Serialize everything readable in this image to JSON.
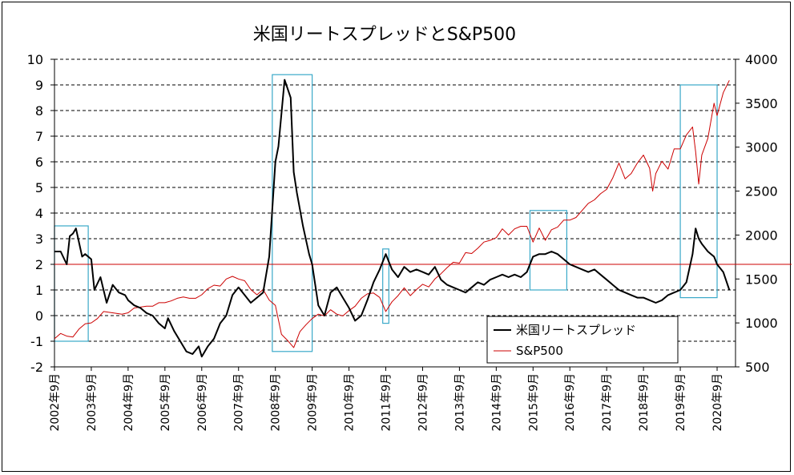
{
  "chart_data": {
    "type": "line",
    "title": "米国リートスプレッドとS&P500",
    "xlabel": "",
    "ylabel": "",
    "y_left": {
      "ylim": [
        -2,
        10
      ],
      "ticks": [
        10,
        9,
        8,
        7,
        6,
        5,
        4,
        3,
        2,
        1,
        0,
        -1,
        -2
      ]
    },
    "y_right": {
      "ylim": [
        500,
        4000
      ],
      "ticks": [
        4000,
        3500,
        3000,
        2500,
        2000,
        1500,
        1000,
        500
      ]
    },
    "x_ticks": [
      "2002年9月",
      "2003年9月",
      "2004年9月",
      "2005年9月",
      "2006年9月",
      "2007年9月",
      "2008年9月",
      "2009年9月",
      "2010年9月",
      "2011年9月",
      "2012年9月",
      "2013年9月",
      "2014年9月",
      "2015年9月",
      "2016年9月",
      "2017年9月",
      "2018年9月",
      "2019年9月",
      "2020年9月"
    ],
    "grid": "horizontal dashed",
    "legend_position": "bottom-right",
    "reference_line": {
      "axis": "left",
      "value": 2,
      "color": "#cc0000"
    },
    "colors": {
      "spread": "#000000",
      "sp500": "#cc0000",
      "highlight": "#3aa9c9"
    },
    "series": [
      {
        "name": "米国リートスプレッド",
        "axis": "left",
        "x": [
          "2002-09",
          "2002-11",
          "2003-01",
          "2003-02",
          "2003-03",
          "2003-04",
          "2003-06",
          "2003-07",
          "2003-09",
          "2003-10",
          "2003-12",
          "2004-02",
          "2004-04",
          "2004-06",
          "2004-08",
          "2004-09",
          "2004-11",
          "2005-01",
          "2005-03",
          "2005-05",
          "2005-07",
          "2005-09",
          "2005-10",
          "2005-12",
          "2006-02",
          "2006-04",
          "2006-06",
          "2006-08",
          "2006-09",
          "2006-11",
          "2007-01",
          "2007-03",
          "2007-05",
          "2007-07",
          "2007-09",
          "2007-11",
          "2008-01",
          "2008-03",
          "2008-05",
          "2008-07",
          "2008-09",
          "2008-10",
          "2008-12",
          "2009-02",
          "2009-03",
          "2009-04",
          "2009-06",
          "2009-08",
          "2009-09",
          "2009-11",
          "2010-01",
          "2010-03",
          "2010-05",
          "2010-07",
          "2010-09",
          "2010-11",
          "2011-01",
          "2011-03",
          "2011-05",
          "2011-07",
          "2011-09",
          "2011-11",
          "2012-01",
          "2012-03",
          "2012-05",
          "2012-07",
          "2012-09",
          "2012-11",
          "2013-01",
          "2013-03",
          "2013-05",
          "2013-07",
          "2013-09",
          "2013-11",
          "2014-01",
          "2014-03",
          "2014-05",
          "2014-07",
          "2014-09",
          "2014-11",
          "2015-01",
          "2015-03",
          "2015-05",
          "2015-07",
          "2015-09",
          "2015-11",
          "2016-01",
          "2016-03",
          "2016-05",
          "2016-07",
          "2016-09",
          "2016-11",
          "2017-01",
          "2017-03",
          "2017-05",
          "2017-07",
          "2017-09",
          "2017-11",
          "2018-01",
          "2018-03",
          "2018-05",
          "2018-07",
          "2018-09",
          "2018-11",
          "2019-01",
          "2019-03",
          "2019-05",
          "2019-07",
          "2019-09",
          "2019-11",
          "2020-01",
          "2020-02",
          "2020-03",
          "2020-04",
          "2020-06",
          "2020-08",
          "2020-09",
          "2020-11",
          "2021-01"
        ],
        "values": [
          2.5,
          2.5,
          2.0,
          3.1,
          3.2,
          3.4,
          2.3,
          2.4,
          2.2,
          1.0,
          1.5,
          0.5,
          1.2,
          0.9,
          0.8,
          0.6,
          0.4,
          0.3,
          0.1,
          0.0,
          -0.3,
          -0.5,
          -0.1,
          -0.6,
          -1.0,
          -1.4,
          -1.5,
          -1.2,
          -1.6,
          -1.2,
          -0.9,
          -0.3,
          0.0,
          0.8,
          1.1,
          0.8,
          0.5,
          0.7,
          0.9,
          2.3,
          6.0,
          6.6,
          9.2,
          8.5,
          5.6,
          4.8,
          3.5,
          2.4,
          2.0,
          0.4,
          0.0,
          0.9,
          1.1,
          0.7,
          0.3,
          -0.2,
          0.0,
          0.6,
          1.3,
          1.8,
          2.4,
          1.8,
          1.5,
          1.9,
          1.7,
          1.8,
          1.7,
          1.6,
          1.9,
          1.4,
          1.2,
          1.1,
          1.0,
          0.9,
          1.1,
          1.3,
          1.2,
          1.4,
          1.5,
          1.6,
          1.5,
          1.6,
          1.5,
          1.7,
          2.3,
          2.4,
          2.4,
          2.5,
          2.4,
          2.2,
          2.0,
          1.9,
          1.8,
          1.7,
          1.8,
          1.6,
          1.4,
          1.2,
          1.0,
          0.9,
          0.8,
          0.7,
          0.7,
          0.6,
          0.5,
          0.6,
          0.8,
          0.9,
          1.0,
          1.3,
          2.4,
          3.4,
          3.0,
          2.8,
          2.5,
          2.3,
          2.0,
          1.7,
          1.0
        ]
      },
      {
        "name": "S&P500",
        "axis": "right",
        "x": [
          "2002-09",
          "2002-11",
          "2003-01",
          "2003-03",
          "2003-05",
          "2003-07",
          "2003-09",
          "2003-11",
          "2004-01",
          "2004-03",
          "2004-05",
          "2004-07",
          "2004-09",
          "2004-11",
          "2005-01",
          "2005-03",
          "2005-05",
          "2005-07",
          "2005-09",
          "2005-11",
          "2006-01",
          "2006-03",
          "2006-05",
          "2006-07",
          "2006-09",
          "2006-11",
          "2007-01",
          "2007-03",
          "2007-05",
          "2007-07",
          "2007-09",
          "2007-11",
          "2008-01",
          "2008-03",
          "2008-05",
          "2008-07",
          "2008-09",
          "2008-11",
          "2009-01",
          "2009-03",
          "2009-05",
          "2009-07",
          "2009-09",
          "2009-11",
          "2010-01",
          "2010-03",
          "2010-05",
          "2010-07",
          "2010-09",
          "2010-11",
          "2011-01",
          "2011-03",
          "2011-05",
          "2011-07",
          "2011-09",
          "2011-11",
          "2012-01",
          "2012-03",
          "2012-05",
          "2012-07",
          "2012-09",
          "2012-11",
          "2013-01",
          "2013-03",
          "2013-05",
          "2013-07",
          "2013-09",
          "2013-11",
          "2014-01",
          "2014-03",
          "2014-05",
          "2014-07",
          "2014-09",
          "2014-11",
          "2015-01",
          "2015-03",
          "2015-05",
          "2015-07",
          "2015-09",
          "2015-11",
          "2016-01",
          "2016-03",
          "2016-05",
          "2016-07",
          "2016-09",
          "2016-11",
          "2017-01",
          "2017-03",
          "2017-05",
          "2017-07",
          "2017-09",
          "2017-11",
          "2018-01",
          "2018-03",
          "2018-05",
          "2018-07",
          "2018-09",
          "2018-11",
          "2018-12",
          "2019-01",
          "2019-03",
          "2019-05",
          "2019-07",
          "2019-09",
          "2019-11",
          "2020-01",
          "2020-02",
          "2020-03",
          "2020-04",
          "2020-06",
          "2020-08",
          "2020-09",
          "2020-11",
          "2021-01"
        ],
        "values": [
          820,
          880,
          850,
          840,
          930,
          990,
          1000,
          1050,
          1130,
          1120,
          1110,
          1100,
          1115,
          1170,
          1180,
          1190,
          1190,
          1230,
          1230,
          1250,
          1280,
          1295,
          1280,
          1280,
          1320,
          1390,
          1430,
          1420,
          1500,
          1530,
          1500,
          1480,
          1380,
          1320,
          1380,
          1260,
          1200,
          870,
          800,
          720,
          900,
          980,
          1050,
          1100,
          1080,
          1150,
          1100,
          1080,
          1140,
          1190,
          1280,
          1330,
          1340,
          1290,
          1130,
          1240,
          1310,
          1400,
          1310,
          1380,
          1440,
          1410,
          1500,
          1560,
          1630,
          1690,
          1680,
          1800,
          1790,
          1850,
          1920,
          1940,
          1970,
          2070,
          2000,
          2070,
          2100,
          2100,
          1920,
          2080,
          1940,
          2060,
          2090,
          2170,
          2170,
          2200,
          2280,
          2360,
          2400,
          2470,
          2520,
          2650,
          2820,
          2640,
          2700,
          2820,
          2910,
          2760,
          2500,
          2700,
          2840,
          2750,
          2980,
          2980,
          3140,
          3230,
          2950,
          2580,
          2910,
          3100,
          3500,
          3360,
          3620,
          3760
        ]
      }
    ],
    "highlight_boxes": [
      {
        "x_start": "2002-09",
        "x_end": "2003-08",
        "y_top": 3.5,
        "y_bottom": -1.0
      },
      {
        "x_start": "2008-08",
        "x_end": "2009-09",
        "y_top": 9.4,
        "y_bottom": -1.4
      },
      {
        "x_start": "2011-08",
        "x_end": "2011-10",
        "y_top": 2.6,
        "y_bottom": -0.3
      },
      {
        "x_start": "2015-08",
        "x_end": "2016-08",
        "y_top": 4.1,
        "y_bottom": 1.0
      },
      {
        "x_start": "2019-09",
        "x_end": "2020-09",
        "y_top": 9.0,
        "y_bottom": 0.7
      }
    ]
  }
}
